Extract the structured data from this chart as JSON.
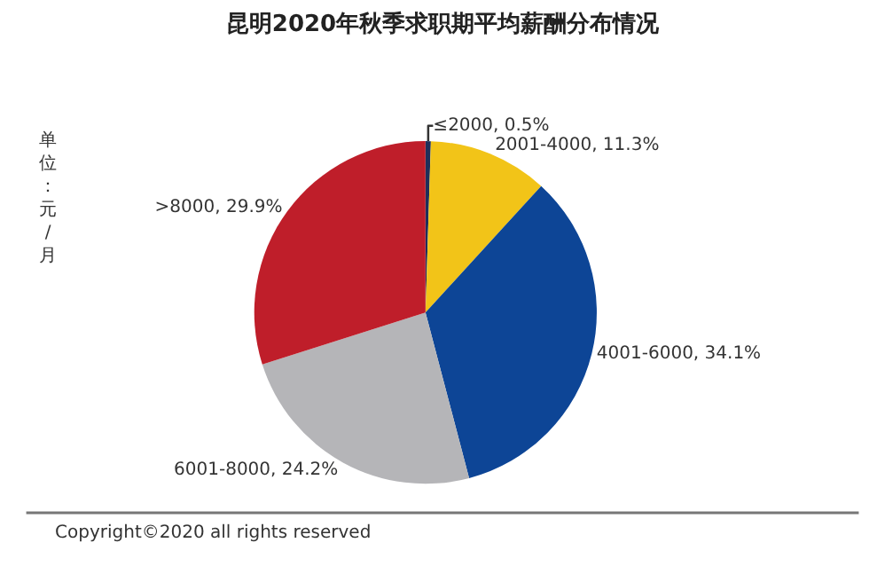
{
  "chart_data": {
    "type": "pie",
    "title": "昆明2020年秋季求职期平均薪酬分布情况",
    "categories": [
      "≤2000",
      "2001-4000",
      "4001-6000",
      "6001-8000",
      ">8000"
    ],
    "values": [
      0.5,
      11.3,
      34.1,
      24.2,
      29.9
    ],
    "value_labels": [
      "0.5%",
      "11.3%",
      "34.1%",
      "24.2%",
      "29.9%"
    ],
    "colors": [
      "#1f2f5a",
      "#f2c418",
      "#0d4596",
      "#b5b5b8",
      "#bf1e2a"
    ],
    "annotations": [
      "单位：元/月",
      "Copyright©2020 all rights reserved"
    ],
    "legend": false
  }
}
